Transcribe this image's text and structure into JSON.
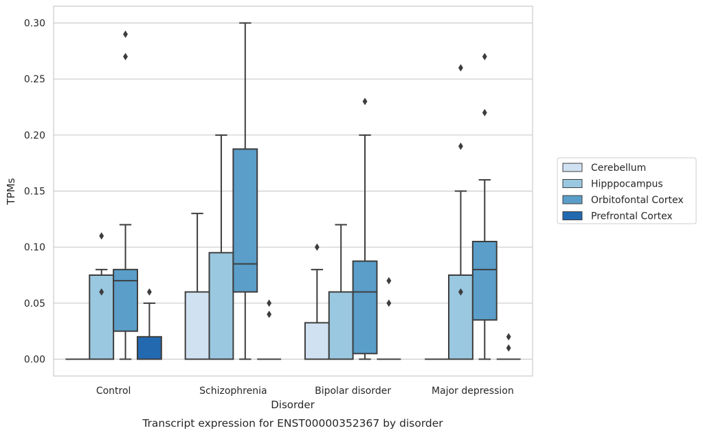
{
  "chart_data": {
    "type": "box",
    "caption": "Transcript expression for ENST00000352367 by disorder",
    "xlabel": "Disorder",
    "ylabel": "TPMs",
    "ylim": [
      -0.015,
      0.315
    ],
    "yticks": [
      "0.00",
      "0.05",
      "0.10",
      "0.15",
      "0.20",
      "0.25",
      "0.30"
    ],
    "grid": true,
    "legend_position": "right",
    "categories": [
      "Control",
      "Schizophrenia",
      "Bipolar disorder",
      "Major depression"
    ],
    "series": [
      {
        "name": "Cerebellum",
        "color": "#d0e1f2",
        "boxes": [
          {
            "whislo": 0,
            "q1": 0,
            "med": 0,
            "q3": 0,
            "whishi": 0,
            "fliers": []
          },
          {
            "whislo": 0,
            "q1": 0,
            "med": 0,
            "q3": 0.06,
            "whishi": 0.13,
            "fliers": []
          },
          {
            "whislo": 0,
            "q1": 0,
            "med": 0,
            "q3": 0.0325,
            "whishi": 0.08,
            "fliers": [
              0.1
            ]
          },
          {
            "whislo": 0,
            "q1": 0,
            "med": 0,
            "q3": 0,
            "whishi": 0,
            "fliers": []
          }
        ]
      },
      {
        "name": "Hipppocampus",
        "color": "#9ac8e0",
        "boxes": [
          {
            "whislo": 0,
            "q1": 0,
            "med": 0,
            "q3": 0.075,
            "whishi": 0.08,
            "fliers": [
              0.11,
              0.06
            ]
          },
          {
            "whislo": 0,
            "q1": 0,
            "med": 0,
            "q3": 0.095,
            "whishi": 0.2,
            "fliers": []
          },
          {
            "whislo": 0,
            "q1": 0,
            "med": 0,
            "q3": 0.06,
            "whishi": 0.12,
            "fliers": []
          },
          {
            "whislo": 0,
            "q1": 0,
            "med": 0,
            "q3": 0.075,
            "whishi": 0.15,
            "fliers": [
              0.19,
              0.06,
              0.26
            ]
          }
        ]
      },
      {
        "name": "Orbitofontal Cortex",
        "color": "#5a9ec9",
        "boxes": [
          {
            "whislo": 0,
            "q1": 0.025,
            "med": 0.07,
            "q3": 0.08,
            "whishi": 0.12,
            "fliers": [
              0.29,
              0.27
            ]
          },
          {
            "whislo": 0,
            "q1": 0.06,
            "med": 0.085,
            "q3": 0.1875,
            "whishi": 0.3,
            "fliers": []
          },
          {
            "whislo": 0,
            "q1": 0.005,
            "med": 0.06,
            "q3": 0.0875,
            "whishi": 0.2,
            "fliers": [
              0.23
            ]
          },
          {
            "whislo": 0,
            "q1": 0.035,
            "med": 0.08,
            "q3": 0.105,
            "whishi": 0.16,
            "fliers": [
              0.27,
              0.22
            ]
          }
        ]
      },
      {
        "name": "Prefrontal Cortex",
        "color": "#2369b0",
        "boxes": [
          {
            "whislo": 0,
            "q1": 0,
            "med": 0,
            "q3": 0.02,
            "whishi": 0.05,
            "fliers": [
              0.06
            ]
          },
          {
            "whislo": 0,
            "q1": 0,
            "med": 0,
            "q3": 0,
            "whishi": 0,
            "fliers": [
              0.05,
              0.04
            ]
          },
          {
            "whislo": 0,
            "q1": 0,
            "med": 0,
            "q3": 0,
            "whishi": 0,
            "fliers": [
              0.07,
              0.05
            ]
          },
          {
            "whislo": 0,
            "q1": 0,
            "med": 0,
            "q3": 0,
            "whishi": 0,
            "fliers": [
              0.02,
              0.01
            ]
          }
        ]
      }
    ]
  }
}
